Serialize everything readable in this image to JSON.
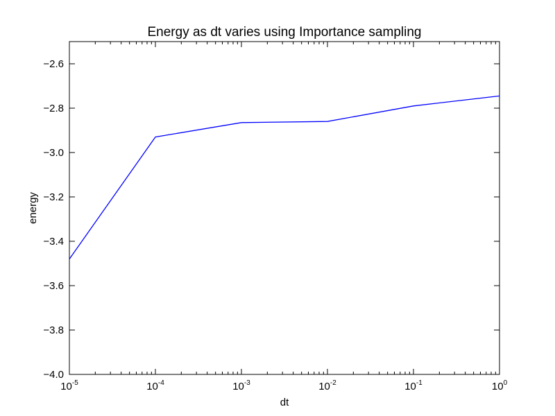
{
  "chart_data": {
    "type": "line",
    "title": "Energy as dt varies using Importance sampling",
    "xlabel": "dt",
    "ylabel": "energy",
    "x_scale": "log",
    "xlim": [
      1e-05,
      1
    ],
    "ylim": [
      -4.0,
      -2.5
    ],
    "x_ticks": [
      {
        "value": 1e-05,
        "base": "10",
        "exp": "-5"
      },
      {
        "value": 0.0001,
        "base": "10",
        "exp": "-4"
      },
      {
        "value": 0.001,
        "base": "10",
        "exp": "-3"
      },
      {
        "value": 0.01,
        "base": "10",
        "exp": "-2"
      },
      {
        "value": 0.1,
        "base": "10",
        "exp": "-1"
      },
      {
        "value": 1,
        "base": "10",
        "exp": "0"
      }
    ],
    "y_ticks": [
      {
        "value": -2.6,
        "label": "−2.6"
      },
      {
        "value": -2.8,
        "label": "−2.8"
      },
      {
        "value": -3.0,
        "label": "−3.0"
      },
      {
        "value": -3.2,
        "label": "−3.2"
      },
      {
        "value": -3.4,
        "label": "−3.4"
      },
      {
        "value": -3.6,
        "label": "−3.6"
      },
      {
        "value": -3.8,
        "label": "−3.8"
      },
      {
        "value": -4.0,
        "label": "−4.0"
      }
    ],
    "grid": false,
    "series": [
      {
        "color": "#0000ff",
        "x": [
          1e-05,
          0.0001,
          0.001,
          0.01,
          0.1,
          1
        ],
        "y": [
          -3.48,
          -2.93,
          -2.865,
          -2.86,
          -2.79,
          -2.745
        ]
      }
    ]
  }
}
